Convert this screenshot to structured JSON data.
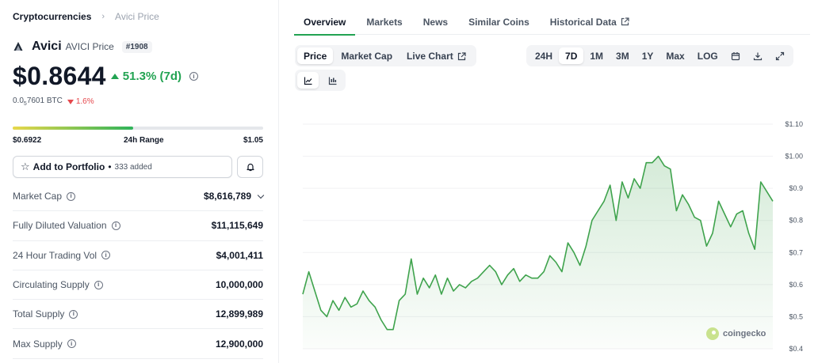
{
  "breadcrumb": {
    "parent": "Cryptocurrencies",
    "current": "Avici Price"
  },
  "coin": {
    "name": "Avici",
    "subtitle": "AVICI Price",
    "rank": "#1908",
    "price": "$0.8644",
    "change_7d": "51.3% (7d)",
    "btc_price_prefix": "0.0",
    "btc_price_sub": "5",
    "btc_price_suffix": "7601 BTC",
    "btc_change": "1.6%"
  },
  "range": {
    "low": "$0.6922",
    "label": "24h Range",
    "high": "$1.05",
    "position_pct": 48
  },
  "portfolio": {
    "label": "Add to Portfolio",
    "bullet": "•",
    "added": "333 added"
  },
  "stats": [
    {
      "label": "Market Cap",
      "value": "$8,616,789"
    },
    {
      "label": "Fully Diluted Valuation",
      "value": "$11,115,649"
    },
    {
      "label": "24 Hour Trading Vol",
      "value": "$4,001,411"
    },
    {
      "label": "Circulating Supply",
      "value": "10,000,000"
    },
    {
      "label": "Total Supply",
      "value": "12,899,989"
    },
    {
      "label": "Max Supply",
      "value": "12,900,000"
    }
  ],
  "tabs": [
    "Overview",
    "Markets",
    "News",
    "Similar Coins",
    "Historical Data"
  ],
  "price_toggle": [
    "Price",
    "Market Cap",
    "Live Chart"
  ],
  "time_ranges": [
    "24H",
    "7D",
    "1M",
    "3M",
    "1Y",
    "Max",
    "LOG"
  ],
  "watermark": "coingecko",
  "colors": {
    "up": "#22a352",
    "down": "#e5484d",
    "line": "#3fa34d"
  },
  "chart_data": {
    "type": "area",
    "y_ticks": [
      "$1.10",
      "$1.00",
      "$0.9",
      "$0.8",
      "$0.7",
      "$0.6",
      "$0.5",
      "$0.4"
    ],
    "ylim": [
      0.4,
      1.1
    ],
    "values": [
      0.57,
      0.64,
      0.58,
      0.52,
      0.5,
      0.55,
      0.52,
      0.56,
      0.53,
      0.54,
      0.58,
      0.55,
      0.53,
      0.49,
      0.46,
      0.46,
      0.55,
      0.57,
      0.68,
      0.57,
      0.62,
      0.59,
      0.63,
      0.57,
      0.62,
      0.58,
      0.6,
      0.59,
      0.61,
      0.62,
      0.64,
      0.66,
      0.64,
      0.6,
      0.63,
      0.65,
      0.61,
      0.63,
      0.62,
      0.62,
      0.64,
      0.69,
      0.67,
      0.64,
      0.73,
      0.7,
      0.66,
      0.72,
      0.8,
      0.83,
      0.86,
      0.91,
      0.8,
      0.92,
      0.87,
      0.93,
      0.9,
      0.98,
      0.98,
      1.0,
      0.97,
      0.96,
      0.83,
      0.88,
      0.85,
      0.81,
      0.8,
      0.72,
      0.76,
      0.86,
      0.82,
      0.78,
      0.82,
      0.83,
      0.76,
      0.71,
      0.92,
      0.89,
      0.86
    ]
  }
}
